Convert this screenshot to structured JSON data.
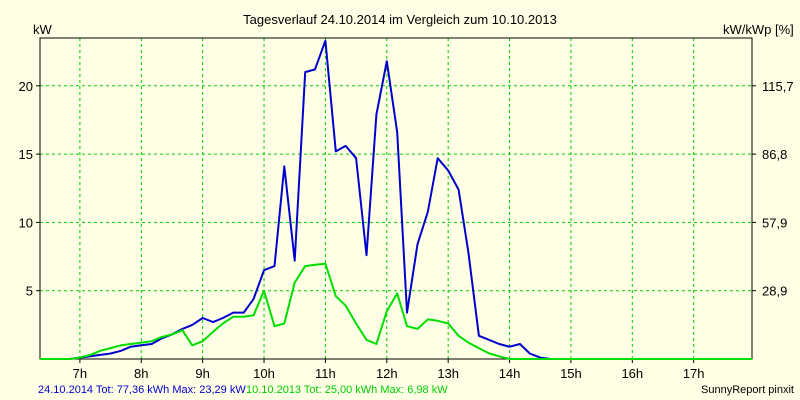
{
  "chart_data": {
    "type": "line",
    "title": "Tagesverlauf 24.10.2014 im Vergleich zum 10.10.2013",
    "ylabel_left": "kW",
    "ylabel_right": "kW/kWp [%]",
    "ylim": [
      0,
      23.5
    ],
    "xlim": [
      6.35,
      17.95
    ],
    "grid": true,
    "x_ticks": [
      7,
      8,
      9,
      10,
      11,
      12,
      13,
      14,
      15,
      16,
      17
    ],
    "x_tick_labels": [
      "7h",
      "8h",
      "9h",
      "10h",
      "11h",
      "12h",
      "13h",
      "14h",
      "15h",
      "16h",
      "17h"
    ],
    "y_ticks_left": [
      5,
      10,
      15,
      20
    ],
    "y_tick_labels_left": [
      "5",
      "10",
      "15",
      "20"
    ],
    "y_tick_labels_right": [
      "28,9",
      "57,9",
      "86,8",
      "115,7"
    ],
    "colors": {
      "background": "#ffffe6",
      "grid": "#00cc00",
      "axis": "#000000"
    },
    "series": [
      {
        "name": "24.10.2014",
        "color": "#0000cc",
        "x": [
          6.35,
          6.67,
          6.83,
          7.0,
          7.17,
          7.33,
          7.5,
          7.67,
          7.83,
          8.0,
          8.17,
          8.33,
          8.5,
          8.67,
          8.83,
          9.0,
          9.17,
          9.33,
          9.5,
          9.67,
          9.83,
          10.0,
          10.17,
          10.33,
          10.5,
          10.67,
          10.83,
          11.0,
          11.17,
          11.33,
          11.5,
          11.67,
          11.83,
          12.0,
          12.17,
          12.33,
          12.5,
          12.67,
          12.83,
          13.0,
          13.17,
          13.33,
          13.5,
          13.67,
          13.83,
          14.0,
          14.17,
          14.33,
          14.5,
          14.67,
          14.83,
          15.0,
          15.17,
          15.33,
          15.5,
          15.67,
          15.83,
          16.0,
          16.17,
          16.33,
          16.5,
          16.67,
          17.0,
          17.33,
          17.67,
          17.95
        ],
        "y": [
          0,
          0,
          0,
          0.1,
          0.2,
          0.3,
          0.4,
          0.6,
          0.9,
          1.0,
          1.1,
          1.5,
          1.8,
          2.2,
          2.5,
          3.0,
          2.7,
          3.0,
          3.4,
          3.4,
          4.4,
          6.5,
          6.8,
          14.1,
          7.2,
          21.0,
          21.2,
          23.3,
          15.2,
          15.6,
          14.7,
          7.6,
          17.9,
          21.8,
          16.6,
          3.4,
          8.4,
          10.8,
          14.7,
          13.8,
          12.4,
          7.8,
          1.7,
          1.4,
          1.1,
          0.9,
          1.1,
          0.4,
          0.1,
          0,
          0,
          0,
          0,
          0,
          0,
          0,
          0,
          0,
          0,
          0,
          0,
          0,
          0,
          0,
          0,
          0
        ]
      },
      {
        "name": "10.10.2013",
        "color": "#00dd00",
        "x": [
          6.35,
          6.67,
          6.83,
          7.0,
          7.17,
          7.33,
          7.5,
          7.67,
          7.83,
          8.0,
          8.17,
          8.33,
          8.5,
          8.67,
          8.83,
          9.0,
          9.17,
          9.33,
          9.5,
          9.67,
          9.83,
          10.0,
          10.17,
          10.33,
          10.5,
          10.67,
          10.83,
          11.0,
          11.17,
          11.33,
          11.5,
          11.67,
          11.83,
          12.0,
          12.17,
          12.33,
          12.5,
          12.67,
          12.83,
          13.0,
          13.17,
          13.33,
          13.5,
          13.67,
          13.83,
          14.0,
          14.17,
          14.33,
          14.5,
          14.67,
          14.83,
          15.0,
          15.17,
          15.33,
          15.5,
          15.67,
          15.83,
          16.0,
          16.17,
          16.33,
          16.5,
          16.67,
          17.0,
          17.33,
          17.67,
          17.95
        ],
        "y": [
          0,
          0,
          0,
          0.1,
          0.3,
          0.6,
          0.8,
          1.0,
          1.1,
          1.2,
          1.3,
          1.6,
          1.8,
          2.1,
          1.0,
          1.3,
          2.0,
          2.6,
          3.1,
          3.1,
          3.2,
          5.0,
          2.4,
          2.6,
          5.6,
          6.8,
          6.9,
          6.98,
          4.6,
          3.9,
          2.6,
          1.4,
          1.1,
          3.5,
          4.8,
          2.4,
          2.2,
          2.9,
          2.8,
          2.6,
          1.7,
          1.2,
          0.8,
          0.4,
          0.2,
          0.0,
          0,
          0,
          0,
          0,
          0,
          0,
          0,
          0,
          0,
          0,
          0,
          0,
          0,
          0,
          0,
          0,
          0,
          0,
          0,
          0
        ]
      }
    ],
    "footer": {
      "series1": "24.10.2014 Tot: 77,36 kWh Max: 23,29 kW",
      "series2": "10.10.2013 Tot: 25,00 kWh Max: 6,98 kW",
      "credit": "SunnyReport pinxit"
    }
  }
}
